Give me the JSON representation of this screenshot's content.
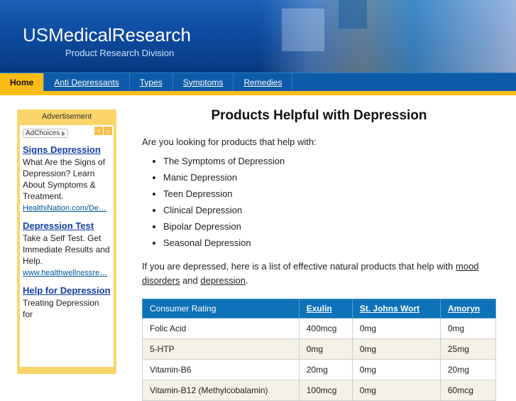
{
  "brand": {
    "prefix": "US",
    "name": "MedicalResearch",
    "subtitle": "Product Research Division"
  },
  "nav": [
    {
      "label": "Home",
      "active": true
    },
    {
      "label": "Anti Depressants",
      "active": false
    },
    {
      "label": "Types",
      "active": false
    },
    {
      "label": "Symptoms",
      "active": false
    },
    {
      "label": "Remedies",
      "active": false
    }
  ],
  "sidebar": {
    "heading": "Advertisement",
    "adchoices_label": "AdChoices",
    "ads": [
      {
        "title": "Signs Depression",
        "text": "What Are the Signs of Depression? Learn About Symptoms & Treatment.",
        "url": "HealthiNation.com/De…"
      },
      {
        "title": "Depression Test",
        "text": "Take a Self Test. Get Immediate Results and Help.",
        "url": "www.healthwellnessre…"
      },
      {
        "title": "Help for Depression",
        "text": "Treating Depression for",
        "url": ""
      }
    ]
  },
  "main": {
    "title": "Products Helpful with Depression",
    "intro": "Are you looking for products that help with:",
    "bullets": [
      "The Symptoms of Depression",
      "Manic Depression",
      "Teen Depression",
      "Clinical Depression",
      "Bipolar Depression",
      "Seasonal Depression"
    ],
    "followup_pre": "If you are depressed, here is a list of effective natural products that help with ",
    "followup_link1": "mood disorders",
    "followup_mid": " and ",
    "followup_link2": "depression",
    "followup_post": "."
  },
  "table": {
    "header_col": "Consumer Rating",
    "products": [
      "Exulin",
      "St. Johns Wort",
      "Amoryn"
    ],
    "rows": [
      {
        "label": "Folic Acid",
        "cells": [
          {
            "v": "400mcg",
            "hi": true
          },
          {
            "v": "0mg",
            "hi": false
          },
          {
            "v": "0mg",
            "hi": false
          }
        ]
      },
      {
        "label": "5-HTP",
        "cells": [
          {
            "v": "0mg",
            "hi": false
          },
          {
            "v": "0mg",
            "hi": false
          },
          {
            "v": "25mg",
            "hi": true
          }
        ]
      },
      {
        "label": "Vitamin-B6",
        "cells": [
          {
            "v": "20mg",
            "hi": true
          },
          {
            "v": "0mg",
            "hi": false
          },
          {
            "v": "20mg",
            "hi": true
          }
        ]
      },
      {
        "label": "Vitamin-B12 (Methylcobalamin)",
        "cells": [
          {
            "v": "100mcg",
            "hi": true
          },
          {
            "v": "0mg",
            "hi": false
          },
          {
            "v": "60mcg",
            "hi": false
          }
        ]
      }
    ],
    "colors": {
      "header_bg": "#0d72b8",
      "alt_row_bg": "#f4f1e6",
      "highlight_text": "#c41414"
    }
  }
}
